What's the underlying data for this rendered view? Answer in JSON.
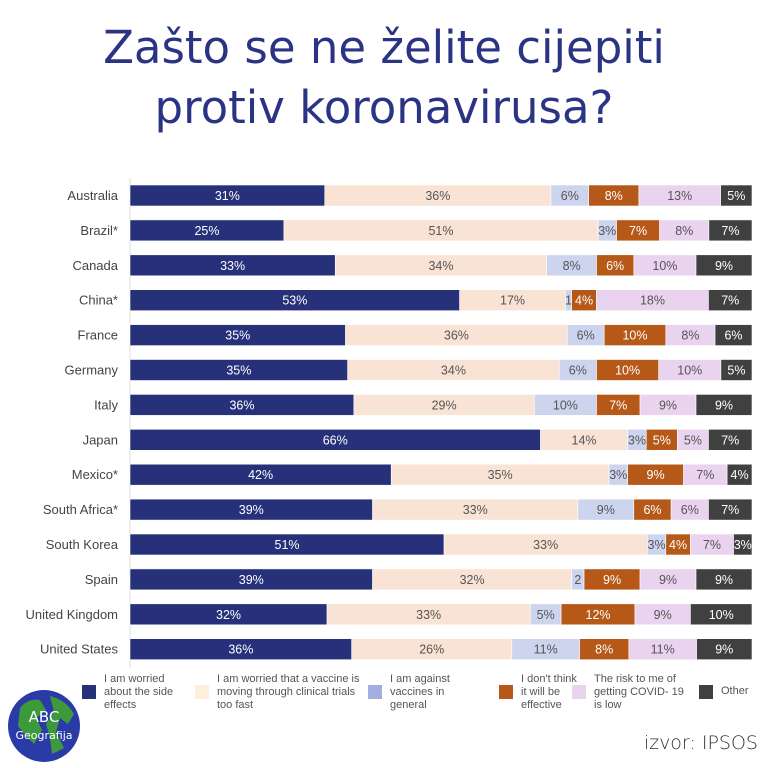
{
  "chart_data": {
    "type": "bar",
    "orientation": "horizontal",
    "stacked": true,
    "title": "Zašto se ne želite cijepiti protiv koronavirusa?",
    "categories": [
      "Australia",
      "Brazil*",
      "Canada",
      "China*",
      "France",
      "Germany",
      "Italy",
      "Japan",
      "Mexico*",
      "South Africa*",
      "South Korea",
      "Spain",
      "United Kingdom",
      "United States"
    ],
    "series": [
      {
        "name": "I am worried about the side effects",
        "color": "#26317a",
        "text_color": "#ffffff",
        "values": [
          31,
          25,
          33,
          53,
          35,
          35,
          36,
          66,
          42,
          39,
          51,
          39,
          32,
          36
        ],
        "labels": [
          "31%",
          "25%",
          "33%",
          "53%",
          "35%",
          "35%",
          "36%",
          "66%",
          "42%",
          "39%",
          "51%",
          "39%",
          "32%",
          "36%"
        ]
      },
      {
        "name": "I am worried that a vaccine is moving through clinical trials too fast",
        "color": "#f9e3d5",
        "text_color": "#555555",
        "values": [
          36,
          51,
          34,
          17,
          36,
          34,
          29,
          14,
          35,
          33,
          33,
          32,
          33,
          26
        ],
        "labels": [
          "36%",
          "51%",
          "34%",
          "17%",
          "36%",
          "34%",
          "29%",
          "14%",
          "35%",
          "33%",
          "33%",
          "32%",
          "33%",
          "26%"
        ]
      },
      {
        "name": "I am against vaccines in general",
        "color": "#cdd5ee",
        "text_color": "#555555",
        "values": [
          6,
          3,
          8,
          1,
          6,
          6,
          10,
          3,
          3,
          9,
          3,
          2,
          5,
          11
        ],
        "labels": [
          "6%",
          "3%",
          "8%",
          "1",
          "6%",
          "6%",
          "10%",
          "3%",
          "3%",
          "9%",
          "3%",
          "2",
          "5%",
          "11%"
        ]
      },
      {
        "name": "I don't think it will be effective",
        "color": "#b55818",
        "text_color": "#ffffff",
        "values": [
          8,
          7,
          6,
          4,
          10,
          10,
          7,
          5,
          9,
          6,
          4,
          9,
          12,
          8
        ],
        "labels": [
          "8%",
          "7%",
          "6%",
          "4%",
          "10%",
          "10%",
          "7%",
          "5%",
          "9%",
          "6%",
          "4%",
          "9%",
          "12%",
          "8%"
        ]
      },
      {
        "name": "The risk to me of getting COVID- 19 is low",
        "color": "#ead3ee",
        "text_color": "#555555",
        "values": [
          13,
          8,
          10,
          18,
          8,
          10,
          9,
          5,
          7,
          6,
          7,
          9,
          9,
          11
        ],
        "labels": [
          "13%",
          "8%",
          "10%",
          "18%",
          "8%",
          "10%",
          "9%",
          "5%",
          "7%",
          "6%",
          "7%",
          "9%",
          "9%",
          "11%"
        ]
      },
      {
        "name": "Other",
        "color": "#404040",
        "text_color": "#ffffff",
        "values": [
          5,
          7,
          9,
          7,
          6,
          5,
          9,
          7,
          4,
          7,
          3,
          9,
          10,
          9
        ],
        "labels": [
          "5%",
          "7%",
          "9%",
          "7%",
          "6%",
          "5%",
          "9%",
          "7%",
          "4%",
          "7%",
          "3%",
          "9%",
          "10%",
          "9%"
        ]
      }
    ],
    "legend_placement": "bottom",
    "legend_lines": [
      [
        "I am worried",
        "about the side",
        "effects"
      ],
      [
        "I am worried that a vaccine is",
        "moving through clinical trials",
        "too fast"
      ],
      [
        "I am against",
        "vaccines in",
        "general"
      ],
      [
        "I don't think",
        "it will be",
        "effective"
      ],
      [
        "The risk to me of",
        "getting COVID- 19",
        "is low"
      ],
      [
        "Other"
      ]
    ],
    "legend_swatch_colors": [
      "#26317a",
      "#fcefdc",
      "#a3aee0",
      "#b55818",
      "#ead3ee",
      "#404040"
    ]
  },
  "title_lines": [
    "Zašto se ne želite cijepiti",
    "protiv koronavirusa?"
  ],
  "logo": {
    "line1": "ABC",
    "line2": "Geografija"
  },
  "source": "izvor: IPSOS"
}
